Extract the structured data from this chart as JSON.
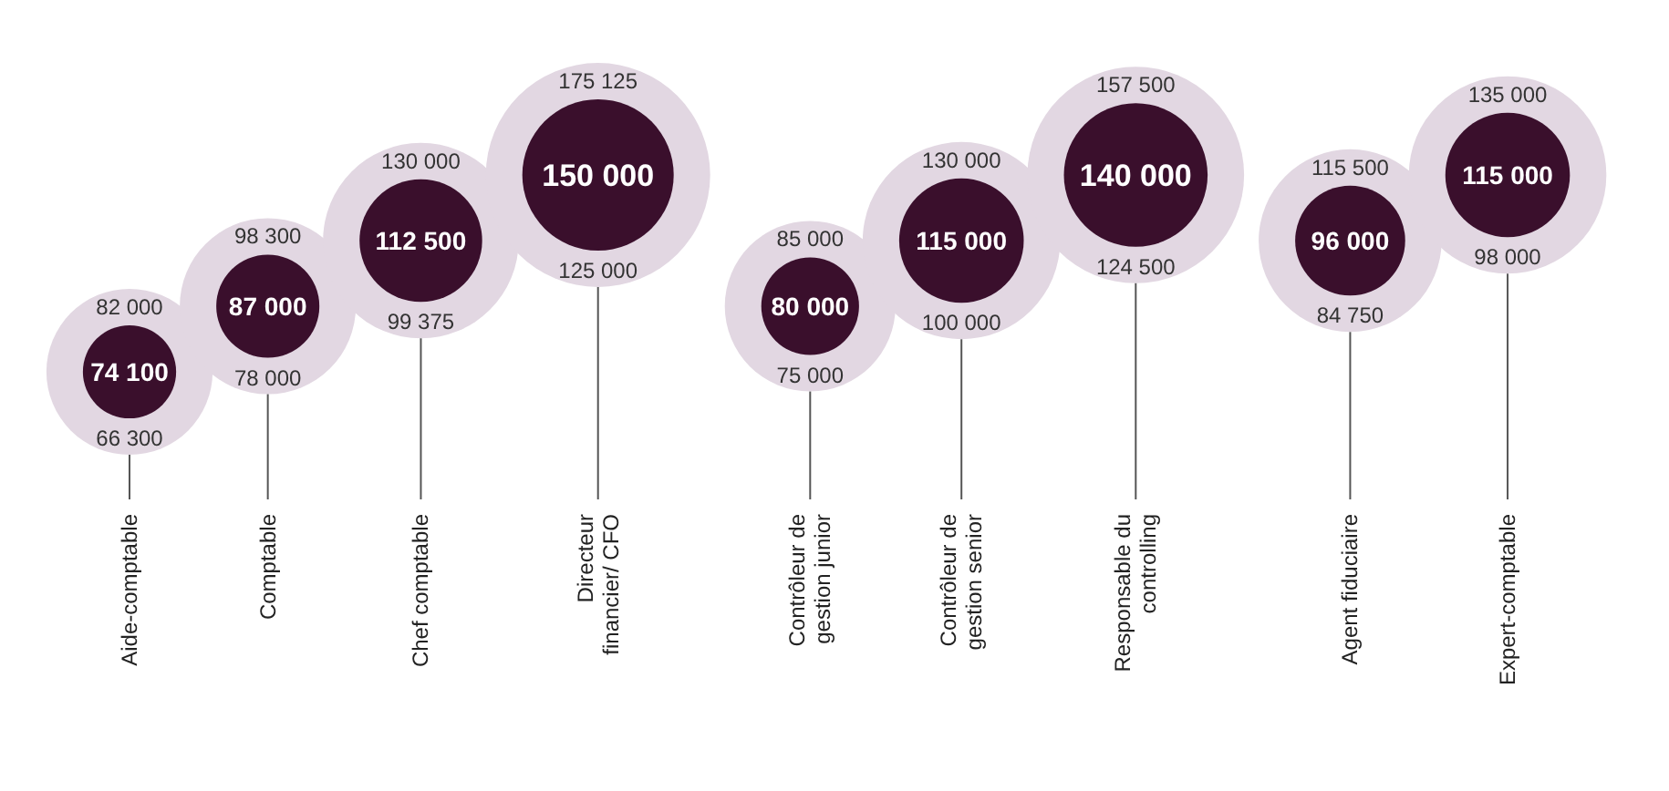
{
  "chart_data": [
    {
      "type": "other",
      "categories": [
        "Aide-comptable",
        "Comptable",
        "Chef comptable",
        "Directeur financier/ CFO"
      ],
      "data_labels": true,
      "series": [
        {
          "color": "#e2d7e2",
          "values": [
            66300,
            78000,
            99375,
            125000
          ]
        },
        {
          "color": "#3a0f2c",
          "values": [
            74100,
            87000,
            112500,
            150000
          ]
        },
        {
          "color": "#e2d7e2",
          "values": [
            82000,
            98300,
            130000,
            175125
          ]
        }
      ]
    },
    {
      "type": "other",
      "categories": [
        "Contrôleur de gestion junior",
        "Contrôleur de gestion senior",
        "Responsable du controlling"
      ],
      "data_labels": true,
      "series": [
        {
          "color": "#e2d7e2",
          "values": [
            75000,
            100000,
            124500
          ]
        },
        {
          "color": "#3a0f2c",
          "values": [
            80000,
            115000,
            140000
          ]
        },
        {
          "color": "#e2d7e2",
          "values": [
            85000,
            130000,
            157500
          ]
        }
      ]
    },
    {
      "type": "other",
      "categories": [
        "Agent fiduciaire",
        "Expert-comptable"
      ],
      "data_labels": true,
      "series": [
        {
          "color": "#e2d7e2",
          "values": [
            84750,
            98000
          ]
        },
        {
          "color": "#3a0f2c",
          "values": [
            96000,
            115000
          ]
        },
        {
          "color": "#e2d7e2",
          "values": [
            115500,
            135000
          ]
        }
      ]
    }
  ]
}
